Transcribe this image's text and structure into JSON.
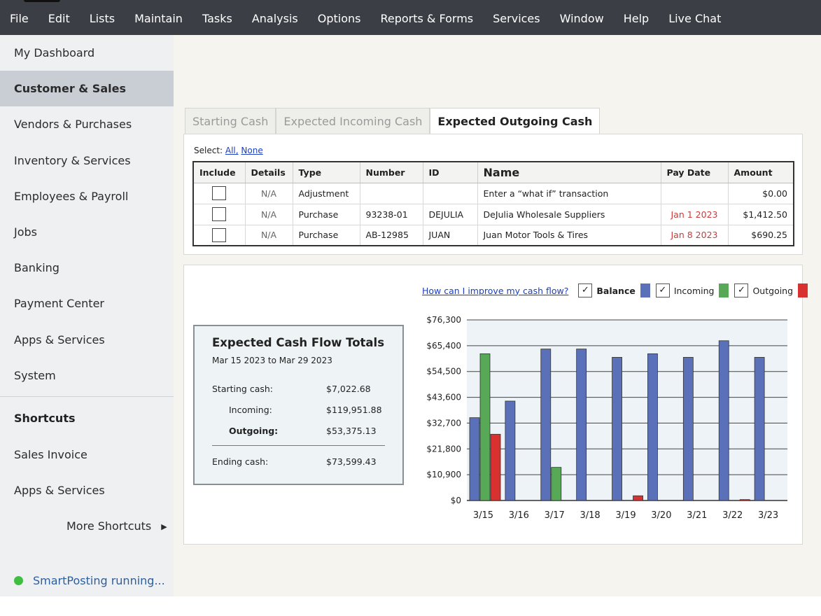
{
  "menu": [
    "File",
    "Edit",
    "Lists",
    "Maintain",
    "Tasks",
    "Analysis",
    "Options",
    "Reports & Forms",
    "Services",
    "Window",
    "Help",
    "Live Chat"
  ],
  "sidebar": {
    "items": [
      "My Dashboard",
      "Customer & Sales",
      "Vendors & Purchases",
      "Inventory & Services",
      "Employees & Payroll",
      "Jobs",
      "Banking",
      "Payment Center",
      "Apps & Services",
      "System"
    ],
    "active_index": 1,
    "shortcuts_heading": "Shortcuts",
    "shortcuts": [
      "Sales Invoice",
      "Apps & Services"
    ],
    "more_shortcuts": "More Shortcuts",
    "status": "SmartPosting running..."
  },
  "tabs": [
    "Starting Cash",
    "Expected Incoming Cash",
    "Expected Outgoing Cash"
  ],
  "active_tab": 2,
  "select": {
    "label": "Select:",
    "all": "All,",
    "none": "None"
  },
  "table": {
    "headers": [
      "Include",
      "Details",
      "Type",
      "Number",
      "ID",
      "Name",
      "Pay Date",
      "Amount"
    ],
    "rows": [
      {
        "details": "N/A",
        "type": "Adjustment",
        "number": "",
        "id": "",
        "name": "Enter a “what if” transaction",
        "pay_date": "",
        "amount": "$0.00"
      },
      {
        "details": "N/A",
        "type": "Purchase",
        "number": "93238-01",
        "id": "DEJULIA",
        "name": "DeJulia Wholesale Suppliers",
        "pay_date": "Jan 1 2023",
        "amount": "$1,412.50"
      },
      {
        "details": "N/A",
        "type": "Purchase",
        "number": "AB-12985",
        "id": "JUAN",
        "name": "Juan Motor Tools & Tires",
        "pay_date": "Jan 8 2023",
        "amount": "$690.25"
      }
    ]
  },
  "totals": {
    "title": "Expected Cash Flow Totals",
    "range": "Mar 15 2023 to Mar 29 2023",
    "starting_label": "Starting cash:",
    "starting_value": "$7,022.68",
    "incoming_label": "Incoming:",
    "incoming_value": "$119,951.88",
    "outgoing_label": "Outgoing:",
    "outgoing_value": "$53,375.13",
    "ending_label": "Ending cash:",
    "ending_value": "$73,599.43"
  },
  "legend": {
    "help_link": "How can I improve my cash flow?",
    "balance": "Balance",
    "incoming": "Incoming",
    "outgoing": "Outgoing",
    "check_glyph": "✓"
  },
  "colors": {
    "balance": "#5a70b8",
    "incoming": "#57a957",
    "outgoing": "#d8312f",
    "status_dot": "#3fbf3f"
  },
  "chart_data": {
    "type": "bar",
    "categories": [
      "3/15",
      "3/16",
      "3/17",
      "3/18",
      "3/19",
      "3/20",
      "3/21",
      "3/22",
      "3/23"
    ],
    "series": [
      {
        "name": "Balance",
        "values": [
          35000,
          42000,
          64000,
          64000,
          60500,
          62000,
          60500,
          67500,
          60500
        ]
      },
      {
        "name": "Incoming",
        "values": [
          62000,
          0,
          14000,
          0,
          0,
          0,
          0,
          0,
          0
        ]
      },
      {
        "name": "Outgoing",
        "values": [
          28000,
          0,
          0,
          0,
          2000,
          0,
          0,
          400,
          0
        ]
      }
    ],
    "y_ticks": [
      "$0",
      "$10,900",
      "$21,800",
      "$32,700",
      "$43,600",
      "$54,500",
      "$65,400",
      "$76,300"
    ],
    "ylim": [
      0,
      76300
    ],
    "grid": true
  }
}
